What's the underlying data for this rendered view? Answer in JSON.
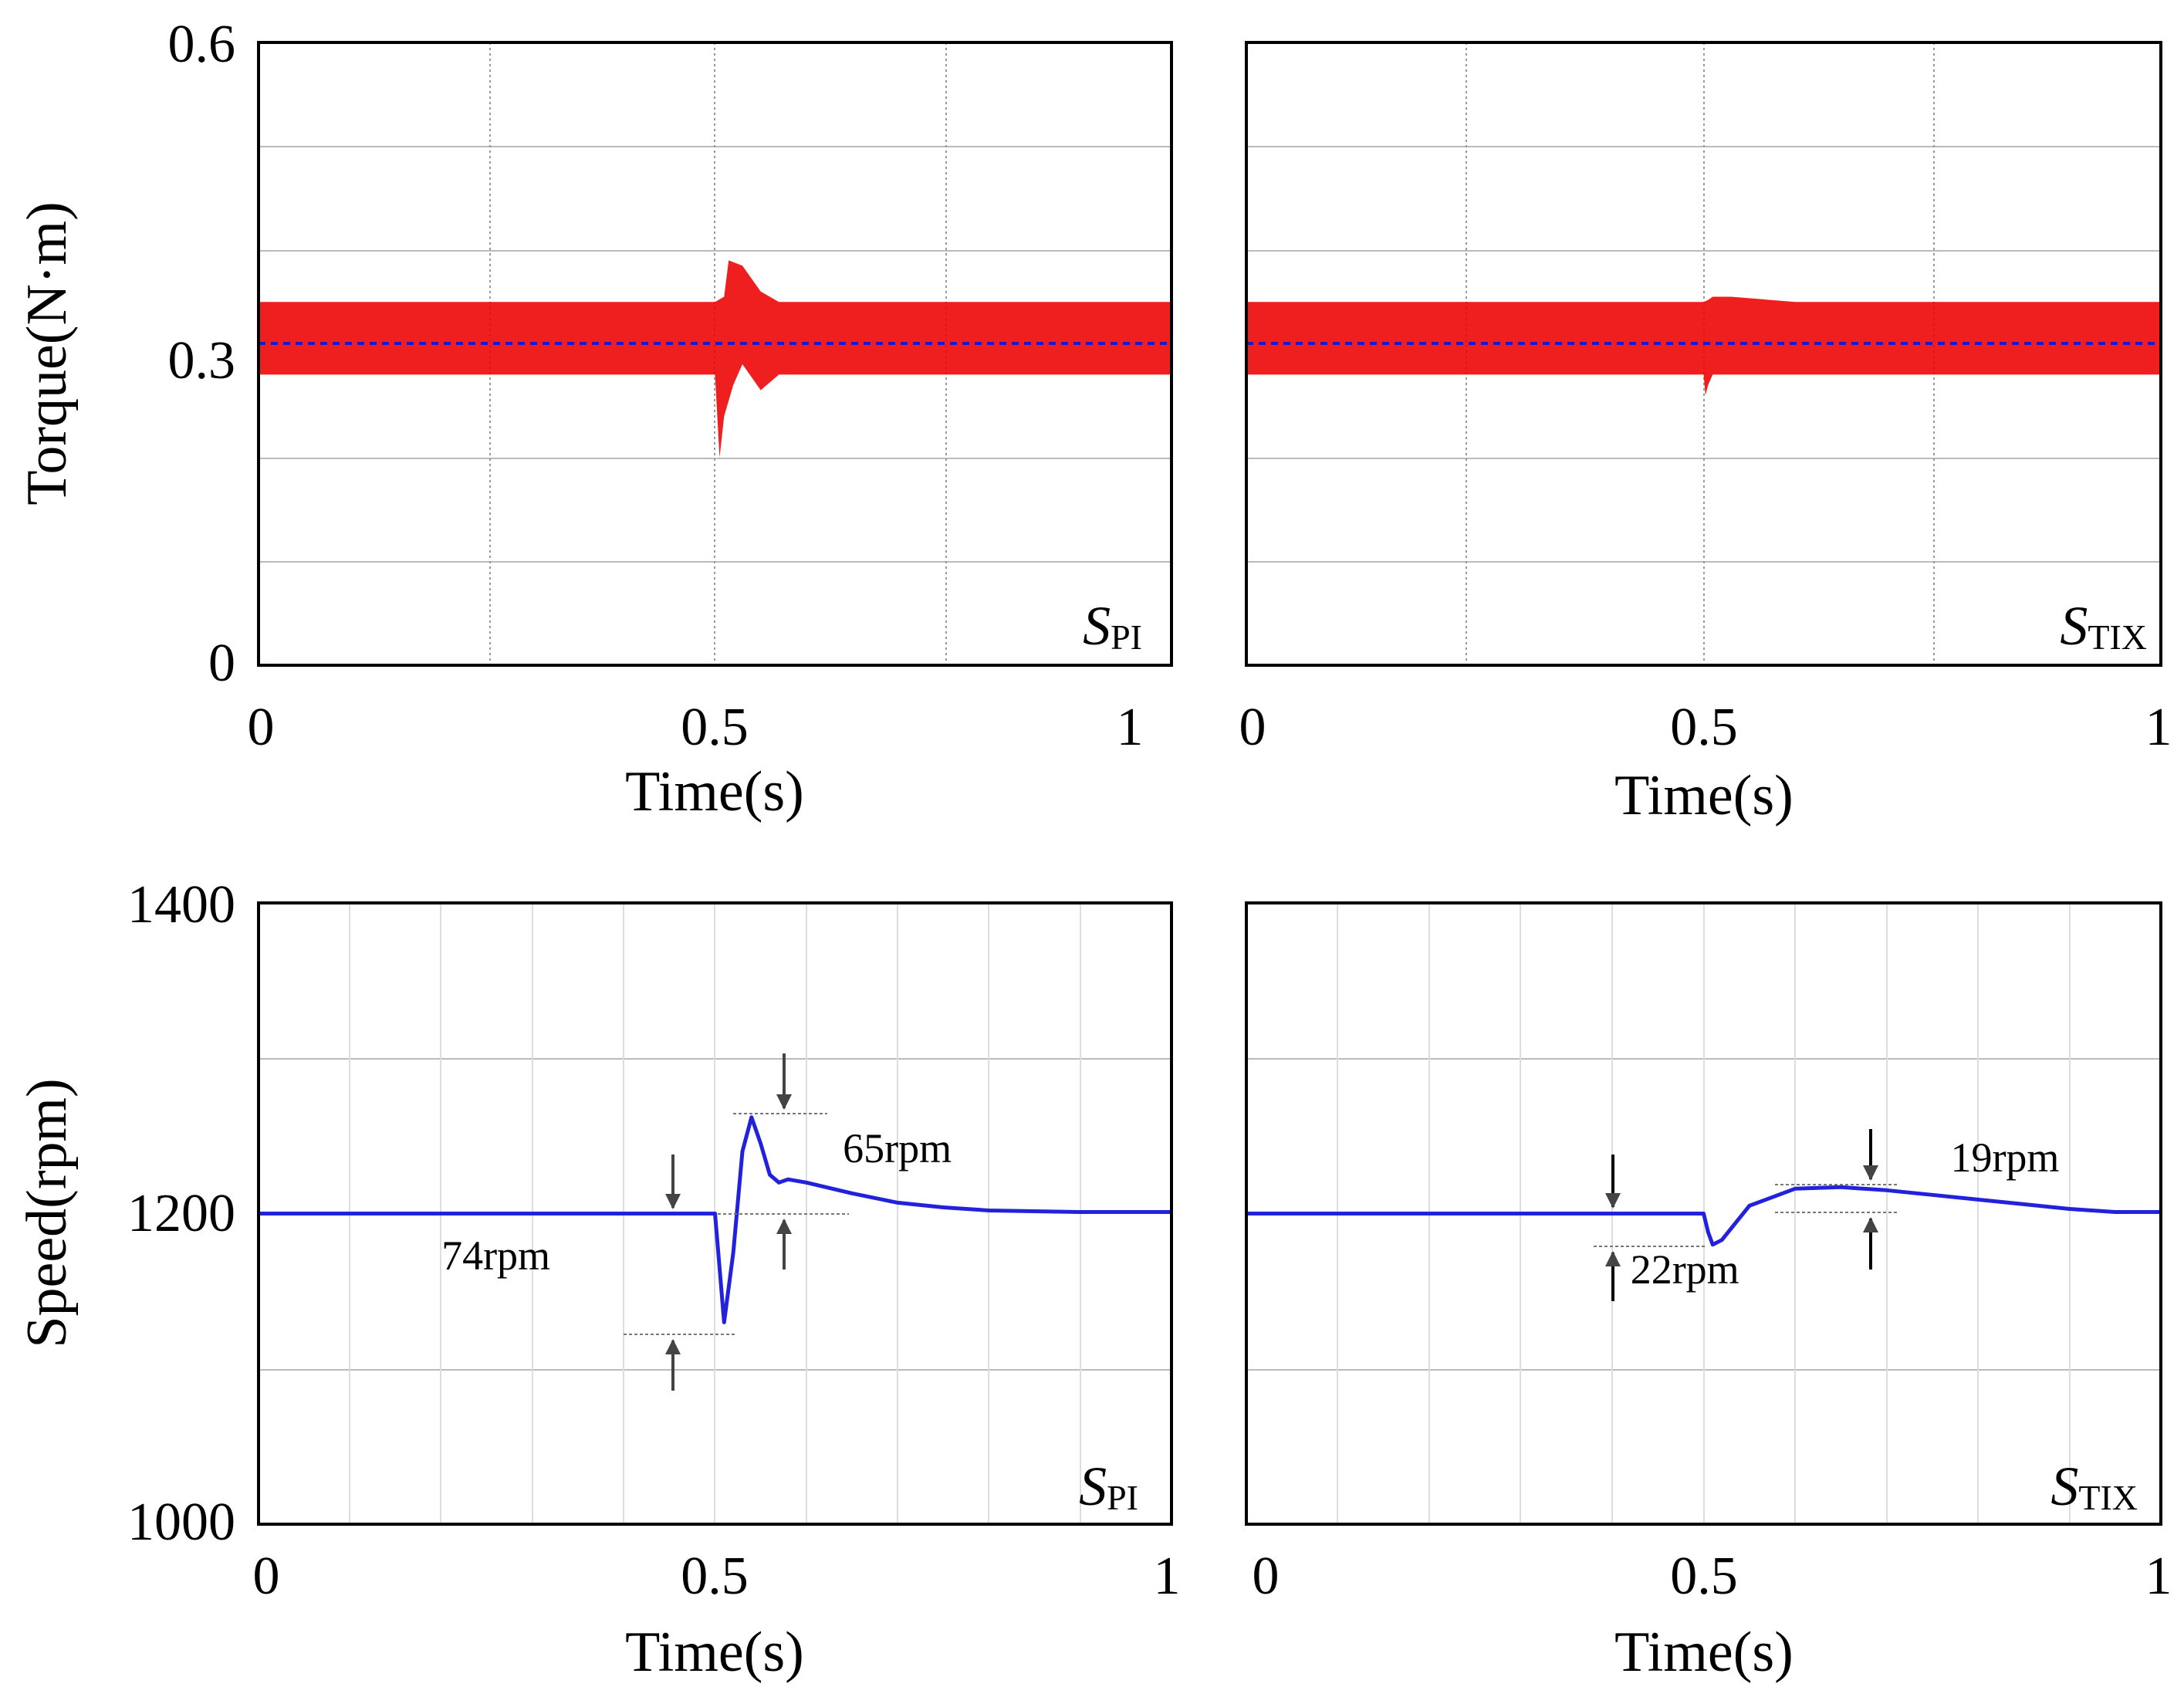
{
  "chart_data": [
    {
      "type": "line",
      "panel": "torque-spi",
      "ylabel": "Torque(N·m)",
      "xlabel": "Time(s)",
      "xlim": [
        0,
        1
      ],
      "ylim": [
        0,
        0.6
      ],
      "xticks": [
        "0",
        "0.5",
        "1"
      ],
      "yticks": [
        "0",
        "0.3",
        "0.6"
      ],
      "label_main": "S",
      "label_sub": "PI",
      "color_band": "#ee0000",
      "color_mean": "#1a1acc",
      "series": [
        {
          "name": "torque band upper",
          "x": [
            0,
            0.5,
            0.51,
            0.515,
            0.53,
            0.55,
            0.57,
            0.6,
            1
          ],
          "y": [
            0.35,
            0.35,
            0.355,
            0.39,
            0.385,
            0.36,
            0.35,
            0.35,
            0.35
          ]
        },
        {
          "name": "torque band lower",
          "x": [
            0,
            0.5,
            0.505,
            0.51,
            0.52,
            0.53,
            0.55,
            0.57,
            0.6,
            1
          ],
          "y": [
            0.28,
            0.28,
            0.2,
            0.24,
            0.27,
            0.29,
            0.265,
            0.28,
            0.28,
            0.28
          ]
        },
        {
          "name": "mean torque",
          "x": [
            0,
            1
          ],
          "y": [
            0.31,
            0.31
          ]
        }
      ]
    },
    {
      "type": "line",
      "panel": "torque-stix",
      "xlabel": "Time(s)",
      "xlim": [
        0,
        1
      ],
      "ylim": [
        0,
        0.6
      ],
      "xticks": [
        "0",
        "0.5",
        "1"
      ],
      "label_main": "S",
      "label_sub": "TIX",
      "color_band": "#ee0000",
      "color_mean": "#1a1acc",
      "series": [
        {
          "name": "torque band upper",
          "x": [
            0,
            0.5,
            0.505,
            0.51,
            0.53,
            0.6,
            1
          ],
          "y": [
            0.35,
            0.35,
            0.352,
            0.355,
            0.355,
            0.35,
            0.35
          ]
        },
        {
          "name": "torque band lower",
          "x": [
            0,
            0.5,
            0.502,
            0.505,
            0.51,
            0.52,
            1
          ],
          "y": [
            0.28,
            0.28,
            0.26,
            0.27,
            0.28,
            0.28,
            0.28
          ]
        },
        {
          "name": "mean torque",
          "x": [
            0,
            1
          ],
          "y": [
            0.31,
            0.31
          ]
        }
      ]
    },
    {
      "type": "line",
      "panel": "speed-spi",
      "ylabel": "Speed(rpm)",
      "xlabel": "Time(s)",
      "xlim": [
        0,
        1
      ],
      "ylim": [
        1000,
        1400
      ],
      "xticks": [
        "0",
        "0.5",
        "1"
      ],
      "yticks": [
        "1000",
        "1200",
        "1400"
      ],
      "label_main": "S",
      "label_sub": "PI",
      "color_line": "#2222dd",
      "series": [
        {
          "name": "speed",
          "x": [
            0,
            0.5,
            0.505,
            0.51,
            0.52,
            0.53,
            0.54,
            0.55,
            0.56,
            0.57,
            0.58,
            0.6,
            0.65,
            0.7,
            0.75,
            0.8,
            0.9,
            1
          ],
          "y": [
            1200,
            1200,
            1165,
            1130,
            1175,
            1240,
            1262,
            1245,
            1225,
            1220,
            1222,
            1220,
            1213,
            1207,
            1204,
            1202,
            1201,
            1201
          ]
        }
      ],
      "annotations": [
        {
          "text": "74rpm",
          "x": 0.26,
          "y": 1164
        },
        {
          "text": "65rpm",
          "x": 0.64,
          "y": 1233
        }
      ]
    },
    {
      "type": "line",
      "panel": "speed-stix",
      "xlabel": "Time(s)",
      "xlim": [
        0,
        1
      ],
      "ylim": [
        1000,
        1400
      ],
      "xticks": [
        "0",
        "0.5",
        "1"
      ],
      "label_main": "S",
      "label_sub": "TIX",
      "color_line": "#2222dd",
      "series": [
        {
          "name": "speed",
          "x": [
            0,
            0.5,
            0.505,
            0.51,
            0.52,
            0.55,
            0.6,
            0.65,
            0.7,
            0.75,
            0.8,
            0.85,
            0.9,
            0.95,
            1
          ],
          "y": [
            1200,
            1200,
            1188,
            1180,
            1183,
            1205,
            1216,
            1217,
            1215,
            1212,
            1209,
            1206,
            1203,
            1201,
            1201
          ]
        }
      ],
      "annotations": [
        {
          "text": "22rpm",
          "x": 0.42,
          "y": 1155
        },
        {
          "text": "19rpm",
          "x": 0.77,
          "y": 1227
        }
      ]
    }
  ]
}
